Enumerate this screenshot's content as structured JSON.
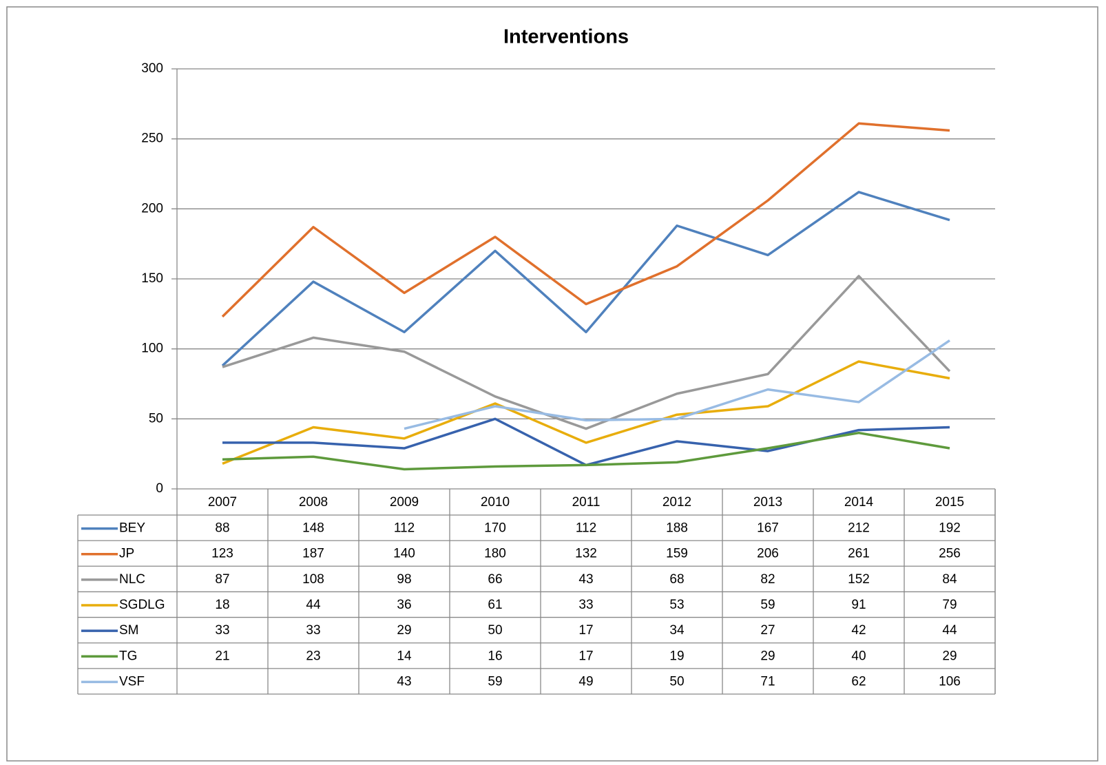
{
  "chart_data": {
    "type": "line",
    "title": "Interventions",
    "categories": [
      "2007",
      "2008",
      "2009",
      "2010",
      "2011",
      "2012",
      "2013",
      "2014",
      "2015"
    ],
    "series": [
      {
        "name": "BEY",
        "color": "#4f81bd",
        "values": [
          88,
          148,
          112,
          170,
          112,
          188,
          167,
          212,
          192
        ]
      },
      {
        "name": "JP",
        "color": "#e0702c",
        "values": [
          123,
          187,
          140,
          180,
          132,
          159,
          206,
          261,
          256
        ]
      },
      {
        "name": "NLC",
        "color": "#999999",
        "values": [
          87,
          108,
          98,
          66,
          43,
          68,
          82,
          152,
          84
        ]
      },
      {
        "name": "SGDLG",
        "color": "#e8ad0c",
        "values": [
          18,
          44,
          36,
          61,
          33,
          53,
          59,
          91,
          79
        ]
      },
      {
        "name": "SM",
        "color": "#3762ad",
        "values": [
          33,
          33,
          29,
          50,
          17,
          34,
          27,
          42,
          44
        ]
      },
      {
        "name": "TG",
        "color": "#5e9a3c",
        "values": [
          21,
          23,
          14,
          16,
          17,
          19,
          29,
          40,
          29
        ]
      },
      {
        "name": "VSF",
        "color": "#98bbe3",
        "values": [
          null,
          null,
          43,
          59,
          49,
          50,
          71,
          62,
          106
        ]
      }
    ],
    "ylim": [
      0,
      300
    ],
    "yticks": [
      0,
      50,
      100,
      150,
      200,
      250,
      300
    ],
    "grid": true
  }
}
